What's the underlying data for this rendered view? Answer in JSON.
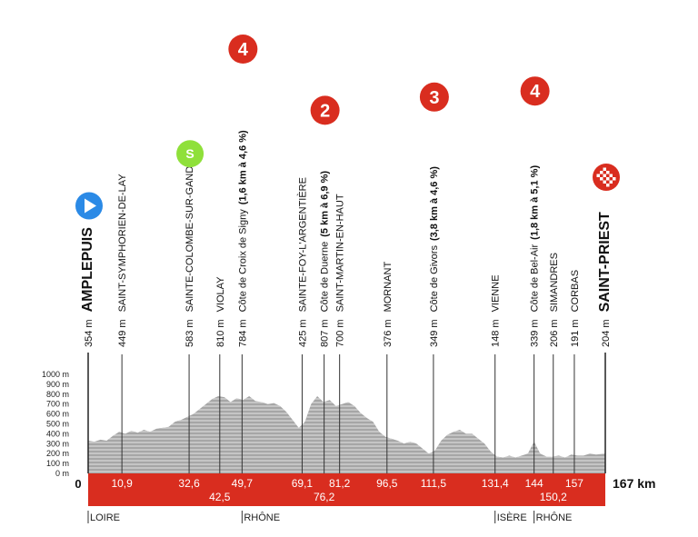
{
  "profile": {
    "total_label": "167 km",
    "start_label": "0",
    "elevation_scale": [
      "1000 m",
      "900 m",
      "800 m",
      "700 m",
      "600 m",
      "500 m",
      "400 m",
      "300 m",
      "200 m",
      "100 m",
      "0 m"
    ],
    "elevation_profile_m": [
      [
        0,
        330
      ],
      [
        2,
        320
      ],
      [
        4,
        340
      ],
      [
        6,
        330
      ],
      [
        8,
        380
      ],
      [
        10,
        420
      ],
      [
        12,
        400
      ],
      [
        14,
        430
      ],
      [
        16,
        410
      ],
      [
        18,
        440
      ],
      [
        20,
        420
      ],
      [
        22,
        450
      ],
      [
        24,
        460
      ],
      [
        26,
        470
      ],
      [
        28,
        520
      ],
      [
        30,
        540
      ],
      [
        32,
        570
      ],
      [
        34,
        600
      ],
      [
        36,
        650
      ],
      [
        38,
        700
      ],
      [
        40,
        750
      ],
      [
        42,
        780
      ],
      [
        44,
        770
      ],
      [
        46,
        720
      ],
      [
        48,
        760
      ],
      [
        50,
        740
      ],
      [
        52,
        780
      ],
      [
        54,
        730
      ],
      [
        56,
        720
      ],
      [
        58,
        700
      ],
      [
        60,
        710
      ],
      [
        62,
        680
      ],
      [
        64,
        620
      ],
      [
        66,
        540
      ],
      [
        68,
        460
      ],
      [
        70,
        520
      ],
      [
        72,
        700
      ],
      [
        74,
        780
      ],
      [
        76,
        720
      ],
      [
        78,
        740
      ],
      [
        80,
        680
      ],
      [
        82,
        700
      ],
      [
        84,
        720
      ],
      [
        86,
        680
      ],
      [
        88,
        610
      ],
      [
        90,
        560
      ],
      [
        92,
        520
      ],
      [
        94,
        420
      ],
      [
        96,
        370
      ],
      [
        98,
        350
      ],
      [
        100,
        330
      ],
      [
        102,
        300
      ],
      [
        104,
        320
      ],
      [
        106,
        300
      ],
      [
        108,
        250
      ],
      [
        110,
        200
      ],
      [
        112,
        230
      ],
      [
        114,
        330
      ],
      [
        116,
        390
      ],
      [
        118,
        420
      ],
      [
        120,
        440
      ],
      [
        122,
        400
      ],
      [
        124,
        400
      ],
      [
        126,
        350
      ],
      [
        128,
        300
      ],
      [
        130,
        220
      ],
      [
        132,
        170
      ],
      [
        134,
        160
      ],
      [
        136,
        180
      ],
      [
        138,
        160
      ],
      [
        140,
        180
      ],
      [
        142,
        200
      ],
      [
        144,
        320
      ],
      [
        146,
        200
      ],
      [
        148,
        170
      ],
      [
        150,
        170
      ],
      [
        152,
        180
      ],
      [
        154,
        160
      ],
      [
        156,
        190
      ],
      [
        158,
        180
      ],
      [
        160,
        180
      ],
      [
        162,
        200
      ],
      [
        164,
        190
      ],
      [
        167,
        200
      ]
    ],
    "km_markers": [
      {
        "km": 10.9,
        "label": "10,9",
        "row": 1
      },
      {
        "km": 32.6,
        "label": "32,6",
        "row": 1
      },
      {
        "km": 42.5,
        "label": "42,5",
        "row": 2
      },
      {
        "km": 49.7,
        "label": "49,7",
        "row": 1
      },
      {
        "km": 69.1,
        "label": "69,1",
        "row": 1
      },
      {
        "km": 76.2,
        "label": "76,2",
        "row": 2
      },
      {
        "km": 81.2,
        "label": "81,2",
        "row": 1
      },
      {
        "km": 96.5,
        "label": "96,5",
        "row": 1
      },
      {
        "km": 111.5,
        "label": "111,5",
        "row": 1
      },
      {
        "km": 131.4,
        "label": "131,4",
        "row": 1
      },
      {
        "km": 144,
        "label": "144",
        "row": 1
      },
      {
        "km": 150.2,
        "label": "150,2",
        "row": 2
      },
      {
        "km": 157,
        "label": "157",
        "row": 1
      }
    ],
    "regions": [
      {
        "km": 0,
        "label": "LOIRE"
      },
      {
        "km": 49.7,
        "label": "RHÔNE"
      },
      {
        "km": 131.4,
        "label": "ISÈRE"
      },
      {
        "km": 144,
        "label": "RHÔNE"
      }
    ]
  },
  "waypoints": [
    {
      "km": 0,
      "alt": "354 m",
      "name": "AMPLEPUIS",
      "detail": "",
      "bold": true,
      "icon": "start-arrow-icon"
    },
    {
      "km": 10.9,
      "alt": "449 m",
      "name": "SAINT-SYMPHORIEN-DE-LAY",
      "detail": "",
      "bold": false,
      "icon": ""
    },
    {
      "km": 32.6,
      "alt": "583 m",
      "name": "SAINTE-COLOMBE-SUR-GAND",
      "detail": "",
      "bold": false,
      "icon": "sprint-icon",
      "icon_label": "S"
    },
    {
      "km": 42.5,
      "alt": "810 m",
      "name": "VIOLAY",
      "detail": "",
      "bold": false,
      "icon": ""
    },
    {
      "km": 49.7,
      "alt": "784 m",
      "name": "Côte de Croix de Signy",
      "detail": "(1,6 km à 4,6 %)",
      "bold": false,
      "icon": "climb-category-icon",
      "icon_label": "4"
    },
    {
      "km": 69.1,
      "alt": "425 m",
      "name": "SAINTE-FOY-L'ARGENTIÈRE",
      "detail": "",
      "bold": false,
      "icon": ""
    },
    {
      "km": 76.2,
      "alt": "807 m",
      "name": "Côte de Duerne",
      "detail": "(5 km à 6,9 %)",
      "bold": false,
      "icon": "climb-category-icon",
      "icon_label": "2"
    },
    {
      "km": 81.2,
      "alt": "700 m",
      "name": "SAINT-MARTIN-EN-HAUT",
      "detail": "",
      "bold": false,
      "icon": ""
    },
    {
      "km": 96.5,
      "alt": "376 m",
      "name": "MORNANT",
      "detail": "",
      "bold": false,
      "icon": ""
    },
    {
      "km": 111.5,
      "alt": "349 m",
      "name": "Côte de Givors",
      "detail": "(3,8 km à 4,6 %)",
      "bold": false,
      "icon": "climb-category-icon",
      "icon_label": "3"
    },
    {
      "km": 131.4,
      "alt": "148 m",
      "name": "VIENNE",
      "detail": "",
      "bold": false,
      "icon": ""
    },
    {
      "km": 144,
      "alt": "339 m",
      "name": "Côte de Bel-Air",
      "detail": "(1,8 km à 5,1 %)",
      "bold": false,
      "icon": "climb-category-icon",
      "icon_label": "4"
    },
    {
      "km": 150.2,
      "alt": "206 m",
      "name": "SIMANDRES",
      "detail": "",
      "bold": false,
      "icon": ""
    },
    {
      "km": 157,
      "alt": "191 m",
      "name": "CORBAS",
      "detail": "",
      "bold": false,
      "icon": ""
    },
    {
      "km": 167,
      "alt": "204 m",
      "name": "SAINT-PRIEST",
      "detail": "",
      "bold": true,
      "icon": "finish-flag-icon"
    }
  ],
  "colors": {
    "bar": "#d92d1f",
    "profile_fill": "#a6a6a6",
    "profile_light": "#d8d8d8",
    "start_icon": "#2b8ae6",
    "sprint_icon": "#8fe03a",
    "climb_icon": "#d92d1f",
    "finish_icon": "#d92d1f"
  }
}
